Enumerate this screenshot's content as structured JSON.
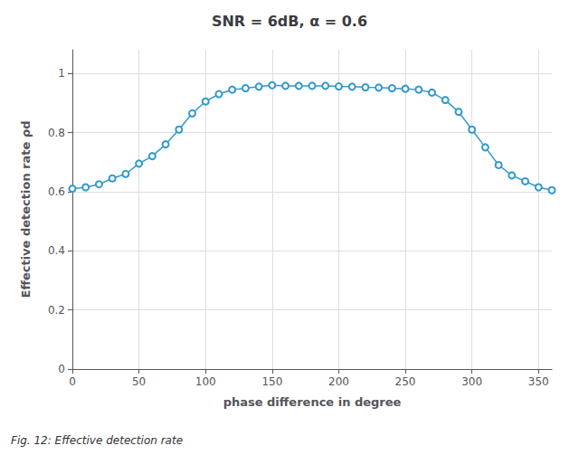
{
  "chart_data": {
    "type": "line",
    "title": "SNR = 6dB, α = 0.6",
    "xlabel": "phase difference in degree",
    "ylabel": "Effective detection rate ρd",
    "annotations": [
      "Fig. 12: Effective detection rate"
    ],
    "x": [
      0,
      10,
      20,
      30,
      40,
      50,
      60,
      70,
      80,
      90,
      100,
      110,
      120,
      130,
      140,
      150,
      160,
      170,
      180,
      190,
      200,
      210,
      220,
      230,
      240,
      250,
      260,
      270,
      280,
      290,
      300,
      310,
      320,
      330,
      340,
      350,
      360
    ],
    "values": [
      0.61,
      0.615,
      0.625,
      0.645,
      0.66,
      0.695,
      0.72,
      0.76,
      0.81,
      0.865,
      0.905,
      0.93,
      0.945,
      0.95,
      0.955,
      0.96,
      0.958,
      0.958,
      0.958,
      0.958,
      0.956,
      0.955,
      0.953,
      0.952,
      0.95,
      0.948,
      0.945,
      0.935,
      0.91,
      0.87,
      0.81,
      0.75,
      0.69,
      0.655,
      0.635,
      0.615,
      0.605
    ],
    "color": "#3399cc",
    "marker": "circle",
    "xlim": [
      0,
      360
    ],
    "ylim": [
      0,
      1.08
    ],
    "xticks": [
      0,
      50,
      100,
      150,
      200,
      250,
      300,
      350
    ],
    "yticks": [
      0,
      0.2,
      0.4,
      0.6,
      0.8,
      1
    ],
    "grid": true
  }
}
